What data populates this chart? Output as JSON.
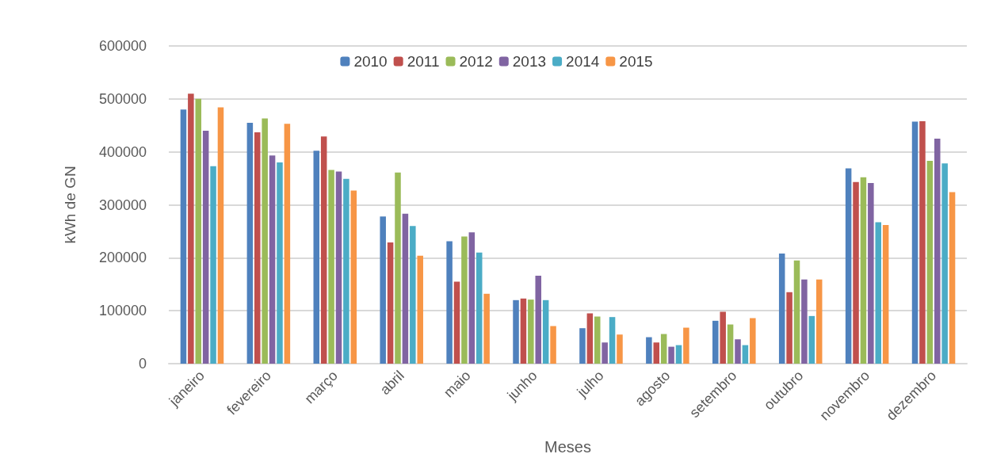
{
  "chart_data": {
    "type": "bar",
    "xlabel": "Meses",
    "ylabel": "kWh de GN",
    "categories": [
      "janeiro",
      "fevereiro",
      "março",
      "abril",
      "maio",
      "junho",
      "julho",
      "agosto",
      "setembro",
      "outubro",
      "novembro",
      "dezembro"
    ],
    "series": [
      {
        "name": "2010",
        "color": "#4f81bd",
        "values": [
          480000,
          455000,
          402000,
          278000,
          231000,
          120000,
          67000,
          50000,
          81000,
          208000,
          369000,
          457000
        ]
      },
      {
        "name": "2011",
        "color": "#c0504d",
        "values": [
          510000,
          437000,
          429000,
          229000,
          155000,
          123000,
          95000,
          40000,
          98000,
          135000,
          343000,
          458000
        ]
      },
      {
        "name": "2012",
        "color": "#9bbb59",
        "values": [
          500000,
          463000,
          366000,
          361000,
          240000,
          121000,
          89000,
          56000,
          74000,
          195000,
          352000,
          383000
        ]
      },
      {
        "name": "2013",
        "color": "#8064a2",
        "values": [
          440000,
          393000,
          363000,
          283000,
          248000,
          166000,
          40000,
          32000,
          46000,
          159000,
          341000,
          425000
        ]
      },
      {
        "name": "2014",
        "color": "#4bacc6",
        "values": [
          373000,
          380000,
          349000,
          260000,
          210000,
          120000,
          88000,
          35000,
          35000,
          90000,
          267000,
          378000
        ]
      },
      {
        "name": "2015",
        "color": "#f79646",
        "values": [
          484000,
          453000,
          327000,
          204000,
          132000,
          71000,
          55000,
          68000,
          86000,
          159000,
          262000,
          324000
        ]
      }
    ],
    "ylim": [
      0,
      600000
    ],
    "yticks": [
      0,
      100000,
      200000,
      300000,
      400000,
      500000,
      600000
    ],
    "grid": "y",
    "legend": "top"
  }
}
